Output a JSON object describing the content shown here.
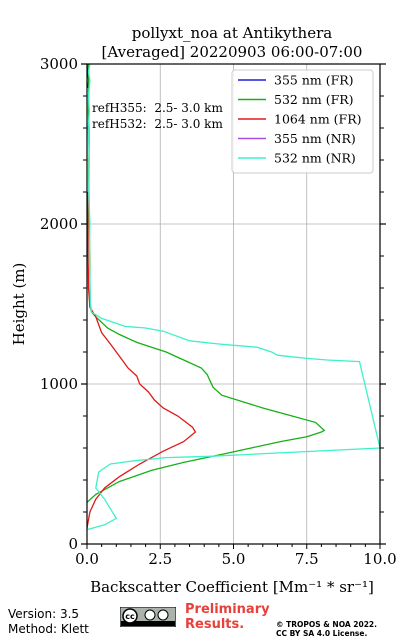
{
  "chart_data": {
    "type": "line",
    "title_line1": "pollyxt_noa at Antikythera",
    "title_line2": "[Averaged] 20220903 06:00-07:00",
    "xlabel": "Backscatter Coefficient [Mm⁻¹ * sr⁻¹]",
    "ylabel": "Height (m)",
    "xlim": [
      0,
      10
    ],
    "ylim": [
      0,
      3000
    ],
    "xticks": [
      0,
      2.5,
      5,
      7.5,
      10
    ],
    "xtick_labels": [
      "0.0",
      "2.5",
      "5.0",
      "7.5",
      "10.0"
    ],
    "yticks": [
      0,
      1000,
      2000,
      3000
    ],
    "ytick_labels": [
      "0",
      "1000",
      "2000",
      "3000"
    ],
    "grid": true,
    "legend_position": "top-right",
    "annotations": [
      "refH355:  2.5- 3.0 km",
      "refH532:  2.5- 3.0 km"
    ],
    "series": [
      {
        "name": "355 nm (FR)",
        "color": "#1f1fdc",
        "x": [
          0,
          0.05,
          0.03
        ],
        "y": [
          3000,
          2900,
          2850
        ]
      },
      {
        "name": "532 nm (FR)",
        "color": "#16b016",
        "x": [
          0.0,
          0.3,
          1.1,
          2.2,
          3.3,
          4.6,
          5.6,
          6.6,
          7.5,
          8.0,
          8.1,
          7.8,
          7.0,
          6.0,
          5.3,
          4.6,
          4.3,
          4.2,
          4.1,
          3.9,
          3.3,
          2.7,
          2.2,
          1.7,
          1.1,
          0.7,
          0.3,
          0.15,
          0.1,
          0.1,
          0.08,
          0.06,
          0.07,
          0.05,
          0.06,
          0.05
        ],
        "y": [
          260,
          310,
          390,
          460,
          510,
          560,
          600,
          640,
          670,
          700,
          710,
          760,
          800,
          850,
          890,
          930,
          980,
          1020,
          1060,
          1100,
          1150,
          1200,
          1230,
          1260,
          1310,
          1350,
          1420,
          1450,
          1500,
          1700,
          2000,
          2300,
          2500,
          2700,
          2900,
          3000
        ]
      },
      {
        "name": "1064 nm (FR)",
        "color": "#e01a1a",
        "x": [
          0.0,
          0.1,
          0.3,
          0.6,
          1.1,
          1.8,
          2.6,
          3.3,
          3.7,
          3.6,
          3.1,
          2.6,
          2.3,
          2.1,
          1.8,
          1.7,
          1.4,
          1.2,
          0.8,
          0.5,
          0.3,
          0.1,
          0.05,
          0.02
        ],
        "y": [
          100,
          200,
          280,
          350,
          420,
          500,
          580,
          640,
          700,
          730,
          800,
          850,
          900,
          950,
          1000,
          1050,
          1100,
          1150,
          1250,
          1320,
          1420,
          1480,
          1600,
          2200
        ]
      },
      {
        "name": "355 nm (NR)",
        "color": "#a64ee6",
        "x": [],
        "y": []
      },
      {
        "name": "532 nm (NR)",
        "color": "#3ff0c8",
        "x": [
          0.0,
          0.6,
          1.0,
          0.6,
          0.3,
          0.4,
          0.8,
          1.6,
          2.7,
          3.6,
          4.2,
          10.0,
          9.3,
          8.2,
          7.5,
          7.0,
          6.5,
          6.3,
          5.8,
          4.8,
          4.5,
          3.5,
          2.6,
          2.0,
          1.3,
          0.5,
          0.15,
          0.12,
          0.08,
          0.1,
          0.06,
          0.08,
          0.04,
          0.08,
          0.05,
          0.1,
          0.05,
          0.1
        ],
        "y": [
          90,
          120,
          160,
          280,
          350,
          450,
          500,
          520,
          540,
          545,
          548,
          600,
          1140,
          1150,
          1160,
          1170,
          1180,
          1200,
          1230,
          1245,
          1250,
          1270,
          1330,
          1350,
          1360,
          1410,
          1450,
          1500,
          1800,
          2000,
          2200,
          2400,
          2600,
          2700,
          2800,
          2900,
          2950,
          3000
        ]
      }
    ]
  },
  "footer": {
    "version": "Version: 3.5",
    "method": "Method: Klett",
    "preliminary": "Preliminary Results.",
    "copyright_line1": "© TROPOS & NOA 2022.",
    "copyright_line2": "CC BY SA 4.0 License."
  }
}
